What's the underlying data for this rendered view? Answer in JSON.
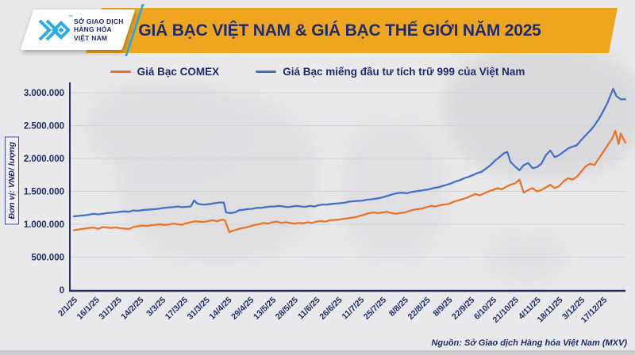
{
  "header": {
    "logo": {
      "line1": "SỞ GIAO DỊCH",
      "line2": "HÀNG HÓA",
      "line3": "VIỆT NAM",
      "trademark": "™"
    },
    "title": "GIÁ BẠC VIỆT NAM & GIÁ BẠC THẾ GIỚI NĂM 2025"
  },
  "footer": {
    "source": "Nguồn: Sở Giao dịch Hàng hóa Việt Nam (MXV)"
  },
  "colors": {
    "banner_gold": "#F0A51E",
    "navy": "#1F2C6B",
    "logo_cyan": "#2BACE2",
    "comex_orange": "#E8752B",
    "vietnam_blue": "#4472C4",
    "grid": "#d3d3d7",
    "axis": "#252C63"
  },
  "chart_data": {
    "type": "line",
    "title": "GIÁ BẠC VIỆT NAM & GIÁ BẠC THẾ GIỚI NĂM 2025",
    "xlabel": "",
    "ylabel": "Đơn vị: VNĐ/ lượng",
    "ylim": [
      0,
      3000000
    ],
    "grid": true,
    "legend_position": "top",
    "y_ticks": [
      {
        "value": 0,
        "label": "0"
      },
      {
        "value": 500000,
        "label": "500.000"
      },
      {
        "value": 1000000,
        "label": "1.000.000"
      },
      {
        "value": 1500000,
        "label": "1.500.000"
      },
      {
        "value": 2000000,
        "label": "2.000.000"
      },
      {
        "value": 2500000,
        "label": "2.500.000"
      },
      {
        "value": 3000000,
        "label": "3.000.000"
      }
    ],
    "x_tick_labels": [
      "2/1/25",
      "16/1/25",
      "31/1/25",
      "14/2/25",
      "3/3/25",
      "17/3/25",
      "31/3/25",
      "14/4/25",
      "29/4/25",
      "13/5/25",
      "28/5/25",
      "11/6/25",
      "26/6/25",
      "11/7/25",
      "25/7/25",
      "8/8/25",
      "22/8/25",
      "8/9/25",
      "22/9/25",
      "6/10/25",
      "21/10/25",
      "4/11/25",
      "18/11/25",
      "3/12/25",
      "17/12/25"
    ],
    "x_index_range": [
      0,
      25
    ],
    "series": [
      {
        "name": "Giá Bạc COMEX",
        "color": "#E8752B",
        "points": [
          [
            0,
            910000
          ],
          [
            0.3,
            925000
          ],
          [
            0.6,
            940000
          ],
          [
            0.9,
            950000
          ],
          [
            1.1,
            930000
          ],
          [
            1.3,
            955000
          ],
          [
            1.5,
            950000
          ],
          [
            1.7,
            945000
          ],
          [
            1.9,
            952000
          ],
          [
            2.1,
            940000
          ],
          [
            2.3,
            935000
          ],
          [
            2.5,
            928000
          ],
          [
            2.7,
            958000
          ],
          [
            2.9,
            970000
          ],
          [
            3.1,
            980000
          ],
          [
            3.3,
            975000
          ],
          [
            3.5,
            985000
          ],
          [
            3.7,
            990000
          ],
          [
            3.9,
            1000000
          ],
          [
            4.1,
            990000
          ],
          [
            4.3,
            995000
          ],
          [
            4.5,
            1010000
          ],
          [
            4.7,
            1000000
          ],
          [
            4.9,
            992000
          ],
          [
            5.1,
            1015000
          ],
          [
            5.3,
            1030000
          ],
          [
            5.5,
            1045000
          ],
          [
            5.7,
            1040000
          ],
          [
            5.9,
            1035000
          ],
          [
            6.1,
            1050000
          ],
          [
            6.3,
            1060000
          ],
          [
            6.5,
            1045000
          ],
          [
            6.7,
            1070000
          ],
          [
            6.85,
            1060000
          ],
          [
            7.05,
            880000
          ],
          [
            7.2,
            900000
          ],
          [
            7.4,
            920000
          ],
          [
            7.6,
            940000
          ],
          [
            7.8,
            950000
          ],
          [
            8.0,
            970000
          ],
          [
            8.2,
            990000
          ],
          [
            8.4,
            1000000
          ],
          [
            8.6,
            1020000
          ],
          [
            8.8,
            1010000
          ],
          [
            9.0,
            1030000
          ],
          [
            9.2,
            1040000
          ],
          [
            9.4,
            1020000
          ],
          [
            9.6,
            1030000
          ],
          [
            9.8,
            1020000
          ],
          [
            10.0,
            1010000
          ],
          [
            10.2,
            1020000
          ],
          [
            10.4,
            1015000
          ],
          [
            10.6,
            1030000
          ],
          [
            10.8,
            1020000
          ],
          [
            11.0,
            1040000
          ],
          [
            11.2,
            1050000
          ],
          [
            11.4,
            1040000
          ],
          [
            11.6,
            1060000
          ],
          [
            11.8,
            1065000
          ],
          [
            12.0,
            1070000
          ],
          [
            12.2,
            1080000
          ],
          [
            12.4,
            1090000
          ],
          [
            12.6,
            1100000
          ],
          [
            12.8,
            1110000
          ],
          [
            13.0,
            1130000
          ],
          [
            13.2,
            1150000
          ],
          [
            13.4,
            1170000
          ],
          [
            13.6,
            1180000
          ],
          [
            13.8,
            1170000
          ],
          [
            14.0,
            1180000
          ],
          [
            14.2,
            1190000
          ],
          [
            14.4,
            1170000
          ],
          [
            14.6,
            1160000
          ],
          [
            14.8,
            1170000
          ],
          [
            15.0,
            1180000
          ],
          [
            15.2,
            1200000
          ],
          [
            15.4,
            1220000
          ],
          [
            15.6,
            1230000
          ],
          [
            15.8,
            1240000
          ],
          [
            16.0,
            1260000
          ],
          [
            16.2,
            1280000
          ],
          [
            16.4,
            1270000
          ],
          [
            16.6,
            1290000
          ],
          [
            16.8,
            1300000
          ],
          [
            17.0,
            1310000
          ],
          [
            17.2,
            1340000
          ],
          [
            17.4,
            1360000
          ],
          [
            17.6,
            1380000
          ],
          [
            17.8,
            1400000
          ],
          [
            18.0,
            1430000
          ],
          [
            18.2,
            1460000
          ],
          [
            18.4,
            1440000
          ],
          [
            18.6,
            1470000
          ],
          [
            18.8,
            1500000
          ],
          [
            19.0,
            1520000
          ],
          [
            19.2,
            1550000
          ],
          [
            19.4,
            1530000
          ],
          [
            19.6,
            1570000
          ],
          [
            19.8,
            1600000
          ],
          [
            20.0,
            1620000
          ],
          [
            20.2,
            1680000
          ],
          [
            20.4,
            1480000
          ],
          [
            20.6,
            1520000
          ],
          [
            20.8,
            1550000
          ],
          [
            21.0,
            1500000
          ],
          [
            21.2,
            1520000
          ],
          [
            21.4,
            1560000
          ],
          [
            21.6,
            1600000
          ],
          [
            21.8,
            1550000
          ],
          [
            22.0,
            1580000
          ],
          [
            22.2,
            1650000
          ],
          [
            22.4,
            1700000
          ],
          [
            22.6,
            1680000
          ],
          [
            22.8,
            1720000
          ],
          [
            23.0,
            1800000
          ],
          [
            23.2,
            1880000
          ],
          [
            23.4,
            1920000
          ],
          [
            23.6,
            1900000
          ],
          [
            23.8,
            2000000
          ],
          [
            24.0,
            2100000
          ],
          [
            24.2,
            2200000
          ],
          [
            24.4,
            2300000
          ],
          [
            24.55,
            2420000
          ],
          [
            24.7,
            2220000
          ],
          [
            24.8,
            2380000
          ],
          [
            25.0,
            2240000
          ]
        ]
      },
      {
        "name": "Giá Bạc miếng đầu tư tích trữ 999 của Việt Nam",
        "color": "#4472C4",
        "points": [
          [
            0,
            1120000
          ],
          [
            0.3,
            1130000
          ],
          [
            0.6,
            1140000
          ],
          [
            0.9,
            1160000
          ],
          [
            1.1,
            1150000
          ],
          [
            1.3,
            1160000
          ],
          [
            1.5,
            1170000
          ],
          [
            1.7,
            1175000
          ],
          [
            1.9,
            1180000
          ],
          [
            2.1,
            1190000
          ],
          [
            2.3,
            1195000
          ],
          [
            2.5,
            1190000
          ],
          [
            2.7,
            1210000
          ],
          [
            2.9,
            1205000
          ],
          [
            3.1,
            1215000
          ],
          [
            3.3,
            1220000
          ],
          [
            3.5,
            1225000
          ],
          [
            3.7,
            1230000
          ],
          [
            3.9,
            1240000
          ],
          [
            4.1,
            1250000
          ],
          [
            4.3,
            1255000
          ],
          [
            4.5,
            1260000
          ],
          [
            4.7,
            1270000
          ],
          [
            4.9,
            1260000
          ],
          [
            5.1,
            1265000
          ],
          [
            5.3,
            1270000
          ],
          [
            5.45,
            1360000
          ],
          [
            5.6,
            1315000
          ],
          [
            5.8,
            1300000
          ],
          [
            6.0,
            1300000
          ],
          [
            6.2,
            1310000
          ],
          [
            6.4,
            1320000
          ],
          [
            6.6,
            1330000
          ],
          [
            6.8,
            1330000
          ],
          [
            6.9,
            1180000
          ],
          [
            7.1,
            1170000
          ],
          [
            7.3,
            1180000
          ],
          [
            7.5,
            1215000
          ],
          [
            7.7,
            1220000
          ],
          [
            7.9,
            1230000
          ],
          [
            8.1,
            1235000
          ],
          [
            8.3,
            1250000
          ],
          [
            8.5,
            1250000
          ],
          [
            8.7,
            1260000
          ],
          [
            8.9,
            1270000
          ],
          [
            9.1,
            1270000
          ],
          [
            9.3,
            1280000
          ],
          [
            9.5,
            1270000
          ],
          [
            9.7,
            1260000
          ],
          [
            9.9,
            1270000
          ],
          [
            10.1,
            1280000
          ],
          [
            10.3,
            1270000
          ],
          [
            10.5,
            1265000
          ],
          [
            10.7,
            1280000
          ],
          [
            10.9,
            1270000
          ],
          [
            11.1,
            1290000
          ],
          [
            11.3,
            1300000
          ],
          [
            11.5,
            1300000
          ],
          [
            11.7,
            1310000
          ],
          [
            11.9,
            1315000
          ],
          [
            12.1,
            1320000
          ],
          [
            12.3,
            1330000
          ],
          [
            12.5,
            1345000
          ],
          [
            12.7,
            1350000
          ],
          [
            12.9,
            1355000
          ],
          [
            13.1,
            1360000
          ],
          [
            13.3,
            1375000
          ],
          [
            13.5,
            1380000
          ],
          [
            13.7,
            1390000
          ],
          [
            13.9,
            1400000
          ],
          [
            14.1,
            1420000
          ],
          [
            14.3,
            1440000
          ],
          [
            14.5,
            1460000
          ],
          [
            14.7,
            1475000
          ],
          [
            14.9,
            1480000
          ],
          [
            15.1,
            1470000
          ],
          [
            15.3,
            1490000
          ],
          [
            15.5,
            1500000
          ],
          [
            15.7,
            1510000
          ],
          [
            15.9,
            1520000
          ],
          [
            16.1,
            1530000
          ],
          [
            16.3,
            1550000
          ],
          [
            16.5,
            1560000
          ],
          [
            16.7,
            1580000
          ],
          [
            16.9,
            1600000
          ],
          [
            17.1,
            1620000
          ],
          [
            17.3,
            1650000
          ],
          [
            17.5,
            1670000
          ],
          [
            17.7,
            1700000
          ],
          [
            17.9,
            1720000
          ],
          [
            18.1,
            1750000
          ],
          [
            18.3,
            1780000
          ],
          [
            18.5,
            1800000
          ],
          [
            18.7,
            1850000
          ],
          [
            18.9,
            1900000
          ],
          [
            19.1,
            1970000
          ],
          [
            19.3,
            2020000
          ],
          [
            19.5,
            2080000
          ],
          [
            19.65,
            2100000
          ],
          [
            19.8,
            1950000
          ],
          [
            20.0,
            1880000
          ],
          [
            20.2,
            1820000
          ],
          [
            20.4,
            1900000
          ],
          [
            20.6,
            1930000
          ],
          [
            20.8,
            1850000
          ],
          [
            21.0,
            1870000
          ],
          [
            21.2,
            1920000
          ],
          [
            21.4,
            2050000
          ],
          [
            21.6,
            2120000
          ],
          [
            21.8,
            2020000
          ],
          [
            22.0,
            2050000
          ],
          [
            22.2,
            2100000
          ],
          [
            22.4,
            2150000
          ],
          [
            22.6,
            2180000
          ],
          [
            22.8,
            2200000
          ],
          [
            23.0,
            2280000
          ],
          [
            23.2,
            2350000
          ],
          [
            23.4,
            2420000
          ],
          [
            23.6,
            2500000
          ],
          [
            23.8,
            2600000
          ],
          [
            24.0,
            2720000
          ],
          [
            24.2,
            2850000
          ],
          [
            24.45,
            3060000
          ],
          [
            24.6,
            2950000
          ],
          [
            24.8,
            2900000
          ],
          [
            25.0,
            2900000
          ]
        ]
      }
    ]
  }
}
